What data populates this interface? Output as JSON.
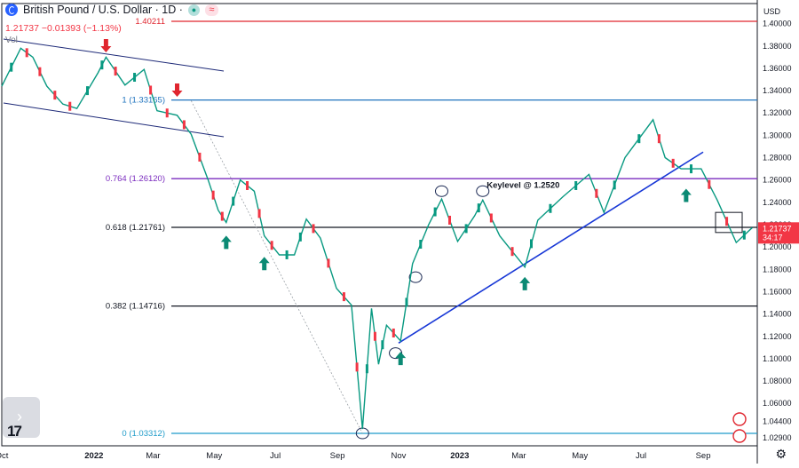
{
  "header": {
    "symbol_title": "British Pound / U.S. Dollar · 1D ·",
    "quote_line": "1.21737  −0.01393 (−1.13%)",
    "vol_label": "Vol"
  },
  "price_axis": {
    "unit_label": "USD",
    "current_price": "1.21737",
    "countdown": "34:17"
  },
  "colors": {
    "up": "#089981",
    "down": "#f23645",
    "fib_100": "#1e73be",
    "fib_764": "#7b2cbf",
    "fib_618": "#131722",
    "fib_382": "#131722",
    "fib_0": "#1e9bc9",
    "high_line": "#e0262f",
    "trendline": "#1737d6",
    "channel": "#1e2a78"
  },
  "icons": [
    "chart-logo-icon",
    "arrow-up-icon",
    "arrow-down-icon",
    "flag-icon",
    "gear-icon",
    "chevron-right-icon"
  ],
  "chart_data": {
    "type": "line",
    "title": "British Pound / U.S. Dollar · 1D",
    "ylim": [
      1.022,
      1.418
    ],
    "y_ticks": [
      1.029,
      1.044,
      1.06,
      1.08,
      1.1,
      1.12,
      1.14,
      1.16,
      1.18,
      1.2,
      1.22,
      1.24,
      1.26,
      1.28,
      1.3,
      1.32,
      1.34,
      1.36,
      1.38,
      1.4
    ],
    "x_ticks": [
      "Oct",
      "2022",
      "Mar",
      "May",
      "Jul",
      "Sep",
      "Nov",
      "2023",
      "Mar",
      "May",
      "Jul",
      "Sep"
    ],
    "x_range": [
      "2021-10-01",
      "2023-10-25"
    ],
    "series": [
      {
        "points": [
          [
            "2021-10-01",
            1.344
          ],
          [
            "2021-10-20",
            1.378
          ],
          [
            "2021-11-01",
            1.37
          ],
          [
            "2021-11-15",
            1.344
          ],
          [
            "2021-12-01",
            1.328
          ],
          [
            "2021-12-15",
            1.324
          ],
          [
            "2022-01-05",
            1.356
          ],
          [
            "2022-01-13",
            1.37
          ],
          [
            "2022-02-01",
            1.345
          ],
          [
            "2022-02-20",
            1.359
          ],
          [
            "2022-03-05",
            1.322
          ],
          [
            "2022-03-25",
            1.318
          ],
          [
            "2022-04-08",
            1.301
          ],
          [
            "2022-04-25",
            1.26
          ],
          [
            "2022-05-05",
            1.233
          ],
          [
            "2022-05-13",
            1.222
          ],
          [
            "2022-05-27",
            1.26
          ],
          [
            "2022-06-10",
            1.25
          ],
          [
            "2022-06-20",
            1.21
          ],
          [
            "2022-07-05",
            1.193
          ],
          [
            "2022-07-20",
            1.193
          ],
          [
            "2022-08-01",
            1.225
          ],
          [
            "2022-08-15",
            1.208
          ],
          [
            "2022-08-31",
            1.163
          ],
          [
            "2022-09-15",
            1.148
          ],
          [
            "2022-09-26",
            1.037
          ],
          [
            "2022-10-05",
            1.145
          ],
          [
            "2022-10-12",
            1.095
          ],
          [
            "2022-10-20",
            1.13
          ],
          [
            "2022-11-03",
            1.116
          ],
          [
            "2022-11-15",
            1.185
          ],
          [
            "2022-12-01",
            1.22
          ],
          [
            "2022-12-14",
            1.243
          ],
          [
            "2022-12-30",
            1.205
          ],
          [
            "2023-01-16",
            1.228
          ],
          [
            "2023-01-24",
            1.242
          ],
          [
            "2023-02-10",
            1.21
          ],
          [
            "2023-03-07",
            1.182
          ],
          [
            "2023-03-20",
            1.224
          ],
          [
            "2023-04-14",
            1.245
          ],
          [
            "2023-05-10",
            1.265
          ],
          [
            "2023-05-25",
            1.231
          ],
          [
            "2023-06-15",
            1.28
          ],
          [
            "2023-07-13",
            1.314
          ],
          [
            "2023-07-25",
            1.28
          ],
          [
            "2023-08-10",
            1.27
          ],
          [
            "2023-08-30",
            1.27
          ],
          [
            "2023-09-15",
            1.242
          ],
          [
            "2023-10-04",
            1.204
          ],
          [
            "2023-10-20",
            1.2174
          ]
        ]
      }
    ],
    "horizontal_levels": [
      {
        "price": 1.40211,
        "label": "1.40211"
      },
      {
        "price": 1.33165,
        "label": "1 (1.33165)"
      },
      {
        "price": 1.2612,
        "label": "0.764 (1.26120)"
      },
      {
        "price": 1.21761,
        "label": "0.618 (1.21761)"
      },
      {
        "price": 1.14716,
        "label": "0.382 (1.14716)"
      },
      {
        "price": 1.03312,
        "label": "0 (1.03312)"
      }
    ],
    "annotations": {
      "keylevel_text": "Keylevel @ 1.2520"
    }
  }
}
